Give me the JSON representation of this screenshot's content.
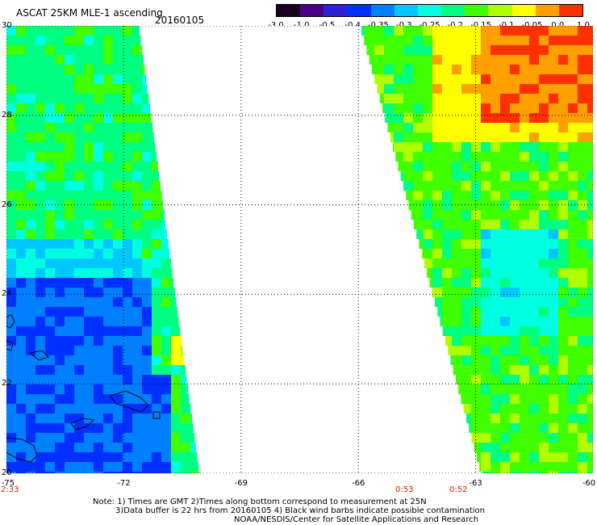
{
  "header": {
    "title": "ASCAT 25KM MLE-1 ascending",
    "date": "20160105"
  },
  "colorbar": {
    "labels": [
      "-3.0",
      "-1.0",
      "-0.5",
      "-0.4",
      "-0.35",
      "-0.3",
      "-0.25",
      "-0.2",
      "-0.15",
      "-0.1",
      "-0.05",
      "0.0",
      "1.0"
    ],
    "colors": [
      "#1a0020",
      "#4b0082",
      "#2e1fd6",
      "#0030ff",
      "#0080ff",
      "#00c8ff",
      "#00ffe0",
      "#00ff80",
      "#40ff00",
      "#b0ff00",
      "#ffff00",
      "#ffa000",
      "#ff3000"
    ]
  },
  "axes": {
    "lat_labels": [
      "30",
      "28",
      "26",
      "24",
      "22",
      "20"
    ],
    "lon_labels": [
      "-75",
      "-72",
      "-69",
      "-66",
      "-63",
      "-60"
    ],
    "lat_range": [
      20,
      30
    ],
    "lon_range": [
      -75,
      -60
    ]
  },
  "pass_times": [
    "2:33",
    "0:53",
    "0:52"
  ],
  "notes": {
    "line1": "Note: 1) Times are GMT 2)Times along bottom correspond to measurement at 25N",
    "line2": "3)Data buffer is 22 hrs from 20160105 4) Black wind barbs indicate possible contamination",
    "line3": "NOAA/NESDIS/Center for Satellite Applications and Research"
  }
}
